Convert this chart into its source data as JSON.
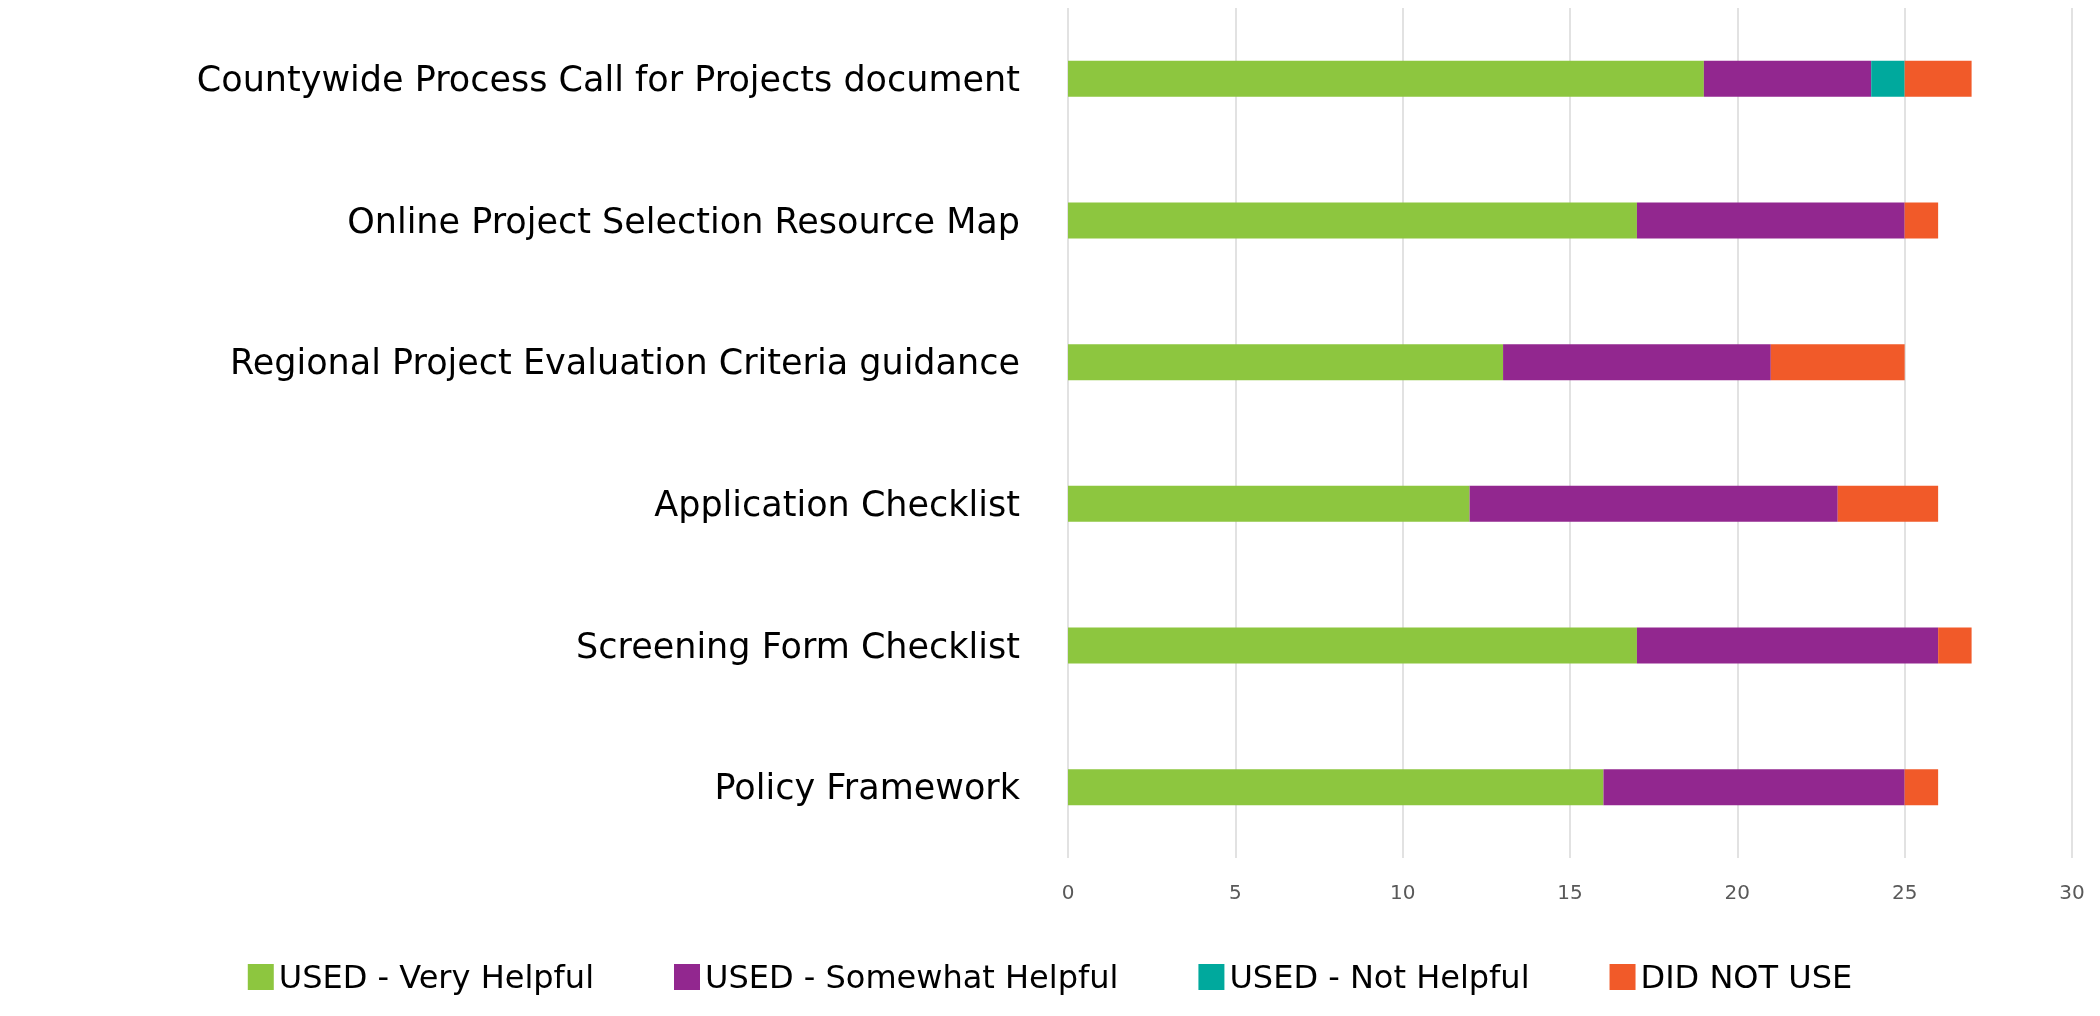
{
  "chart_data": {
    "type": "bar",
    "orientation": "horizontal",
    "stacked": true,
    "categories": [
      "Countywide Process Call for Projects document",
      "Online Project Selection Resource Map",
      "Regional Project Evaluation Criteria guidance",
      "Application Checklist",
      "Screening Form Checklist",
      "Policy Framework"
    ],
    "series": [
      {
        "name": "USED - Very Helpful",
        "color": "#8dc63f",
        "values": [
          19,
          17,
          13,
          12,
          17,
          16
        ]
      },
      {
        "name": "USED - Somewhat Helpful",
        "color": "#92278f",
        "values": [
          5,
          8,
          8,
          11,
          9,
          9
        ]
      },
      {
        "name": "USED - Not Helpful",
        "color": "#00a99d",
        "values": [
          1,
          0,
          0,
          0,
          0,
          0
        ]
      },
      {
        "name": "DID NOT USE",
        "color": "#f15a29",
        "values": [
          2,
          1,
          4,
          3,
          1,
          1
        ]
      }
    ],
    "xlim": [
      0,
      30
    ],
    "xticks": [
      0,
      5,
      10,
      15,
      20,
      25,
      30
    ],
    "grid": "x",
    "legend": "bottom"
  }
}
